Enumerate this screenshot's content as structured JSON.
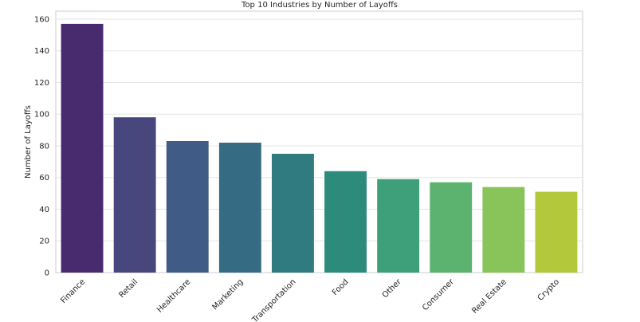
{
  "chart_data": {
    "type": "bar",
    "title": "Top 10 Industries by Number of Layoffs",
    "xlabel": "",
    "ylabel": "Number of Layoffs",
    "categories": [
      "Finance",
      "Retail",
      "Healthcare",
      "Marketing",
      "Transportation",
      "Food",
      "Other",
      "Consumer",
      "Real Estate",
      "Crypto"
    ],
    "values": [
      157,
      98,
      83,
      82,
      75,
      64,
      59,
      57,
      54,
      51
    ],
    "ylim": [
      0,
      165
    ],
    "yticks": [
      0,
      20,
      40,
      60,
      80,
      100,
      120,
      140,
      160
    ],
    "grid": true,
    "colors": [
      "#482a6e",
      "#47467d",
      "#405b86",
      "#366c83",
      "#2f7b80",
      "#2d8b7c",
      "#3ea07a",
      "#5bb36f",
      "#89c45a",
      "#b3c83a"
    ]
  }
}
